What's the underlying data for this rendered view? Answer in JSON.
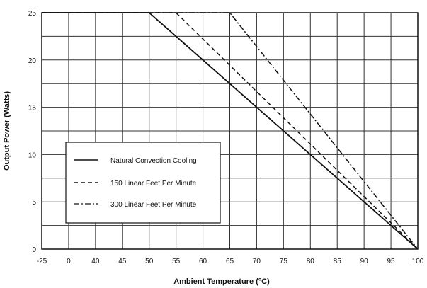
{
  "chart_data": {
    "type": "line",
    "xlabel": "Ambient Temperature (°C)",
    "ylabel": "Output Power (Watts)",
    "x_ticks": [
      -25,
      0,
      40,
      45,
      50,
      55,
      60,
      65,
      70,
      75,
      80,
      85,
      90,
      95,
      100
    ],
    "y_ticks": [
      0,
      5,
      10,
      15,
      20,
      25
    ],
    "ylim": [
      0,
      25
    ],
    "grid": true,
    "legend_position": "lower-left",
    "series": [
      {
        "name": "Natural Convection Cooling",
        "style": "solid",
        "points": [
          [
            -25,
            25
          ],
          [
            50,
            25
          ],
          [
            100,
            0
          ]
        ]
      },
      {
        "name": "150 Linear Feet Per Minute",
        "style": "dashed",
        "points": [
          [
            -25,
            25
          ],
          [
            55,
            25
          ],
          [
            100,
            0
          ]
        ]
      },
      {
        "name": "300 Linear Feet Per Minute",
        "style": "dash-dot",
        "points": [
          [
            -25,
            25
          ],
          [
            65,
            25
          ],
          [
            100,
            0
          ]
        ]
      }
    ]
  }
}
